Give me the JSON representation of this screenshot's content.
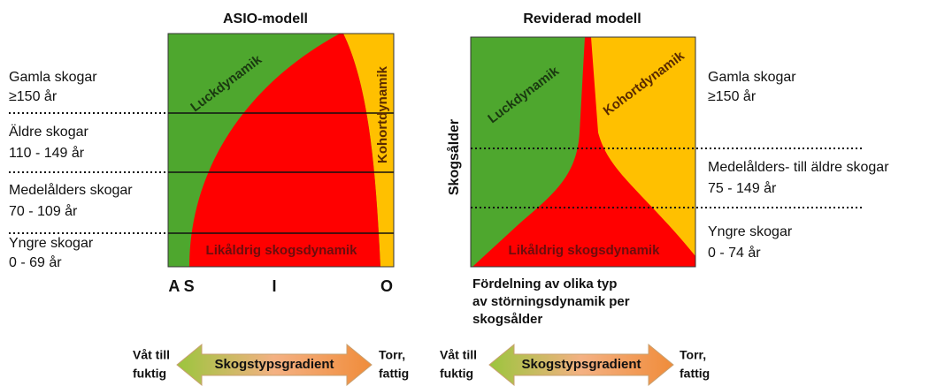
{
  "left_panel": {
    "title": "ASIO-modell",
    "zones": {
      "gap": "Luckdynamik",
      "cohort": "Kohortdynamik",
      "even_aged": "Likåldrig skogsdynamik"
    },
    "axis_labels": [
      "A S",
      "I",
      "O"
    ],
    "age_classes": [
      {
        "name": "Gamla skogar",
        "range": "≥150 år"
      },
      {
        "name": "Äldre skogar",
        "range": "110 - 149 år"
      },
      {
        "name": "Medelålders skogar",
        "range": "70 - 109 år"
      },
      {
        "name": "Yngre skogar",
        "range": "0 - 69 år"
      }
    ]
  },
  "right_panel": {
    "title": "Reviderad modell",
    "y_axis_label": "Skogsålder",
    "zones": {
      "gap": "Luckdynamik",
      "cohort": "Kohortdynamik",
      "even_aged": "Likåldrig skogsdynamik"
    },
    "age_classes": [
      {
        "name": "Gamla skogar",
        "range": "≥150 år"
      },
      {
        "name": "Medelålders- till äldre skogar",
        "range": "75 - 149 år"
      },
      {
        "name": "Yngre skogar",
        "range": "0 - 74 år"
      }
    ],
    "caption": [
      "Fördelning av olika typ",
      "av störningsdynamik per",
      "skogsålder"
    ]
  },
  "gradients": [
    {
      "left": [
        "Våt till",
        "fuktig"
      ],
      "label": "Skogstypsgradient",
      "right": [
        "Torr,",
        "fattig"
      ]
    },
    {
      "left": [
        "Våt till",
        "fuktig"
      ],
      "label": "Skogstypsgradient",
      "right": [
        "Torr,",
        "fattig"
      ]
    }
  ]
}
